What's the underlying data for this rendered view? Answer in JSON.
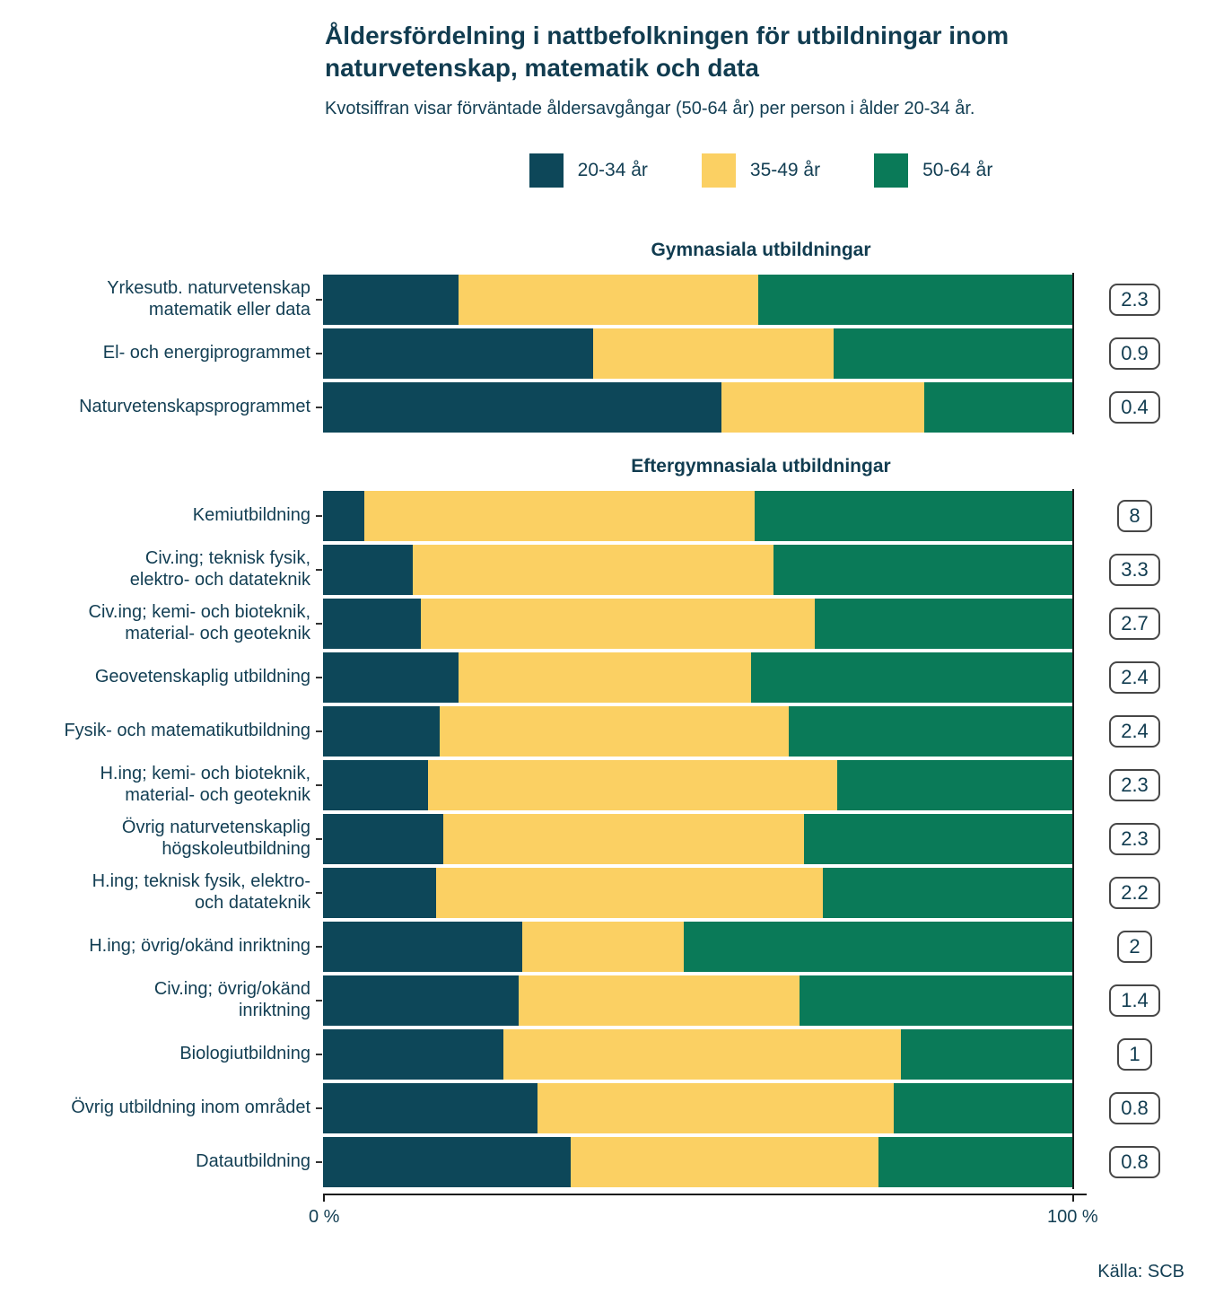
{
  "header": {
    "title_lines": [
      "Åldersfördelning i nattbefolkningen för utbildningar inom",
      "naturvetenskap, matematik och data"
    ],
    "subtitle": "Kvotsiffran visar förväntade åldersavgångar (50-64 år) per person i ålder 20-34 år."
  },
  "axis": {
    "x_min": "0 %",
    "x_max": "100 %"
  },
  "source": "Källa: SCB",
  "chart_data": {
    "type": "bar",
    "orientation": "horizontal",
    "stacked": true,
    "unit": "%",
    "x_range": [
      0,
      100
    ],
    "legend_position": "top-center",
    "series": [
      {
        "key": "20-34",
        "name": "20-34 år",
        "color": "#0d4759"
      },
      {
        "key": "35-49",
        "name": "35-49 år",
        "color": "#fbd063"
      },
      {
        "key": "50-64",
        "name": "50-64 år",
        "color": "#0a7a58"
      }
    ],
    "sections": [
      {
        "title": "Gymnasiala utbildningar",
        "rows": [
          {
            "label": [
              "Yrkesutb. naturvetenskap",
              "matematik eller data"
            ],
            "values": [
              18,
              40,
              42
            ],
            "ratio": "2.3"
          },
          {
            "label": [
              "El- och energiprogrammet"
            ],
            "values": [
              36,
              32,
              32
            ],
            "ratio": "0.9"
          },
          {
            "label": [
              "Naturvetenskapsprogrammet"
            ],
            "values": [
              53,
              27,
              20
            ],
            "ratio": "0.4"
          }
        ]
      },
      {
        "title": "Eftergymnasiala utbildningar",
        "rows": [
          {
            "label": [
              "Kemiutbildning"
            ],
            "values": [
              5.5,
              52,
              42.5
            ],
            "ratio": "8"
          },
          {
            "label": [
              "Civ.ing; teknisk fysik,",
              "elektro- och datateknik"
            ],
            "values": [
              12,
              48,
              40
            ],
            "ratio": "3.3"
          },
          {
            "label": [
              "Civ.ing; kemi- och bioteknik,",
              "material- och geoteknik"
            ],
            "values": [
              13,
              52.5,
              34.5
            ],
            "ratio": "2.7"
          },
          {
            "label": [
              "Geovetenskaplig utbildning"
            ],
            "values": [
              18,
              39,
              43
            ],
            "ratio": "2.4"
          },
          {
            "label": [
              "Fysik- och matematikutbildning"
            ],
            "values": [
              15.5,
              46.5,
              38
            ],
            "ratio": "2.4"
          },
          {
            "label": [
              "H.ing; kemi- och bioteknik,",
              "material- och geoteknik"
            ],
            "values": [
              14,
              54.5,
              31.5
            ],
            "ratio": "2.3"
          },
          {
            "label": [
              "Övrig naturvetenskaplig",
              "högskoleutbildning"
            ],
            "values": [
              16,
              48,
              36
            ],
            "ratio": "2.3"
          },
          {
            "label": [
              "H.ing; teknisk fysik, elektro-",
              "och datateknik"
            ],
            "values": [
              15,
              51.5,
              33.5
            ],
            "ratio": "2.2"
          },
          {
            "label": [
              "H.ing; övrig/okänd inriktning"
            ],
            "values": [
              26.5,
              21.5,
              52
            ],
            "ratio": "2"
          },
          {
            "label": [
              "Civ.ing; övrig/okänd",
              "inriktning"
            ],
            "values": [
              26,
              37.5,
              36.5
            ],
            "ratio": "1.4"
          },
          {
            "label": [
              "Biologiutbildning"
            ],
            "values": [
              24,
              53,
              23
            ],
            "ratio": "1"
          },
          {
            "label": [
              "Övrig utbildning inom området"
            ],
            "values": [
              28.5,
              47.5,
              24
            ],
            "ratio": "0.8"
          },
          {
            "label": [
              "Datautbildning"
            ],
            "values": [
              33,
              41,
              26
            ],
            "ratio": "0.8"
          }
        ]
      }
    ]
  }
}
